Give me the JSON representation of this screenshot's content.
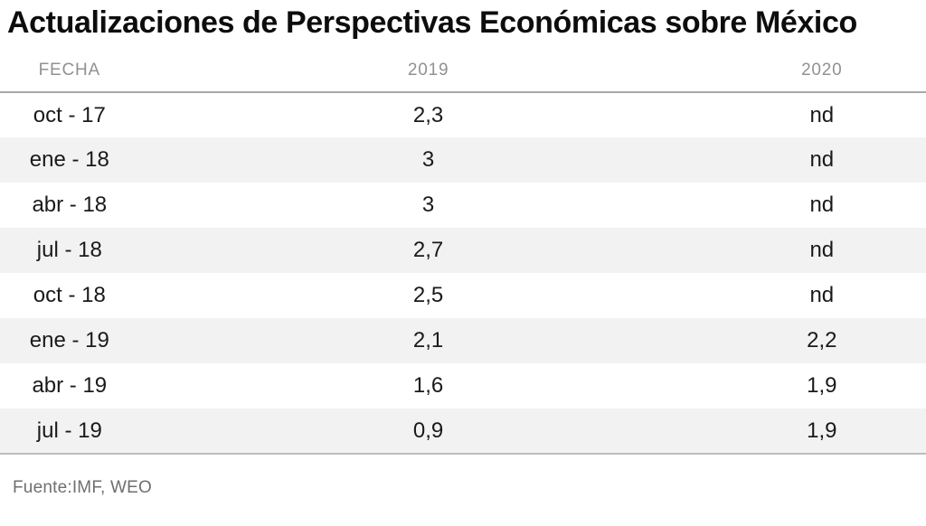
{
  "title": "Actualizaciones de Perspectivas Económicas sobre México",
  "table": {
    "columns": [
      "FECHA",
      "2019",
      "2020"
    ],
    "rows": [
      [
        "oct - 17",
        "2,3",
        "nd"
      ],
      [
        "ene - 18",
        "3",
        "nd"
      ],
      [
        "abr - 18",
        "3",
        "nd"
      ],
      [
        "jul - 18",
        "2,7",
        "nd"
      ],
      [
        "oct - 18",
        "2,5",
        "nd"
      ],
      [
        "ene - 19",
        "2,1",
        "2,2"
      ],
      [
        "abr - 19",
        "1,6",
        "1,9"
      ],
      [
        "jul - 19",
        "0,9",
        "1,9"
      ]
    ]
  },
  "source": "Fuente:IMF, WEO",
  "colors": {
    "title_text": "#0d0d0d",
    "header_text": "#919191",
    "body_text": "#1a1a1a",
    "stripe": "#f2f2f2",
    "header_rule": "#a8a8a8",
    "bottom_rule": "#bdbdbd",
    "source_text": "#6f6f6f",
    "background": "#ffffff"
  },
  "chart_data": {
    "type": "table",
    "title": "Actualizaciones de Perspectivas Económicas sobre México",
    "columns": [
      "FECHA",
      "2019",
      "2020"
    ],
    "categories": [
      "oct - 17",
      "ene - 18",
      "abr - 18",
      "jul - 18",
      "oct - 18",
      "ene - 19",
      "abr - 19",
      "jul - 19"
    ],
    "series": [
      {
        "name": "2019",
        "values": [
          2.3,
          3,
          3,
          2.7,
          2.5,
          2.1,
          1.6,
          0.9
        ]
      },
      {
        "name": "2020",
        "values": [
          null,
          null,
          null,
          null,
          null,
          2.2,
          1.9,
          1.9
        ]
      }
    ],
    "missing_value_label": "nd",
    "decimal_separator": ",",
    "source": "Fuente:IMF, WEO",
    "layout": {
      "striped_rows": true,
      "grid": "off",
      "header_rule": true,
      "bottom_rule": true
    }
  }
}
